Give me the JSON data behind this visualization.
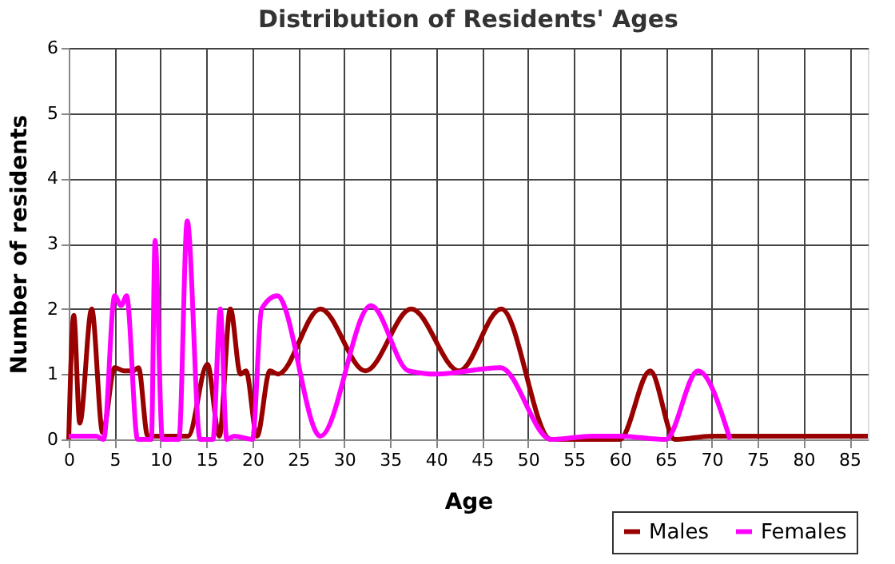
{
  "chart_data": {
    "type": "line",
    "title": "Distribution of Residents' Ages",
    "xlabel": "Age",
    "ylabel": "Number of residents",
    "xlim": [
      0,
      87
    ],
    "xticks": [
      0,
      5,
      10,
      15,
      20,
      25,
      30,
      35,
      40,
      45,
      50,
      55,
      60,
      65,
      70,
      75,
      80,
      85
    ],
    "ylim": [
      0,
      6
    ],
    "yticks": [
      0,
      1,
      2,
      3,
      4,
      5,
      6
    ],
    "grid": true,
    "legend": "bottom right",
    "series": [
      {
        "name": "Males",
        "color": "#990000",
        "x": [
          0,
          0.55,
          1.2,
          2.5,
          3.7,
          5,
          6,
          7,
          7.6,
          8.6,
          10,
          13,
          15.1,
          16.4,
          17.6,
          18.7,
          19.3,
          20.5,
          21.9,
          22.8,
          27.4,
          32.3,
          37.3,
          42.5,
          47.1,
          52.5,
          60,
          63.3,
          66,
          70,
          87
        ],
        "values": [
          0,
          1.9,
          0.25,
          2.0,
          0.1,
          1.1,
          1.05,
          1.05,
          1.1,
          0.05,
          0.05,
          0.05,
          1.15,
          0.05,
          2.0,
          1.0,
          1.05,
          0.05,
          1.05,
          1.0,
          2.0,
          1.05,
          2.0,
          1.05,
          2.0,
          0,
          0,
          1.05,
          0,
          0.05,
          0.05
        ]
      },
      {
        "name": "Females",
        "color": "#ff00ff",
        "x": [
          0,
          3,
          3.8,
          5,
          5.7,
          6.3,
          7.5,
          9,
          9.4,
          10.2,
          12,
          12.9,
          14.3,
          15.7,
          16.5,
          17.2,
          18,
          20,
          21,
          22.7,
          27.4,
          32.9,
          37,
          40,
          47,
          52.5,
          57,
          60,
          65,
          68.5,
          72
        ],
        "values": [
          0.05,
          0.05,
          0,
          2.2,
          2.05,
          2.2,
          0,
          0,
          3.05,
          0,
          0,
          3.35,
          0,
          0,
          2.0,
          0,
          0.05,
          0,
          2.0,
          2.2,
          0.05,
          2.05,
          1.05,
          1.0,
          1.1,
          0,
          0.05,
          0.05,
          0,
          1.05,
          0
        ]
      }
    ]
  }
}
